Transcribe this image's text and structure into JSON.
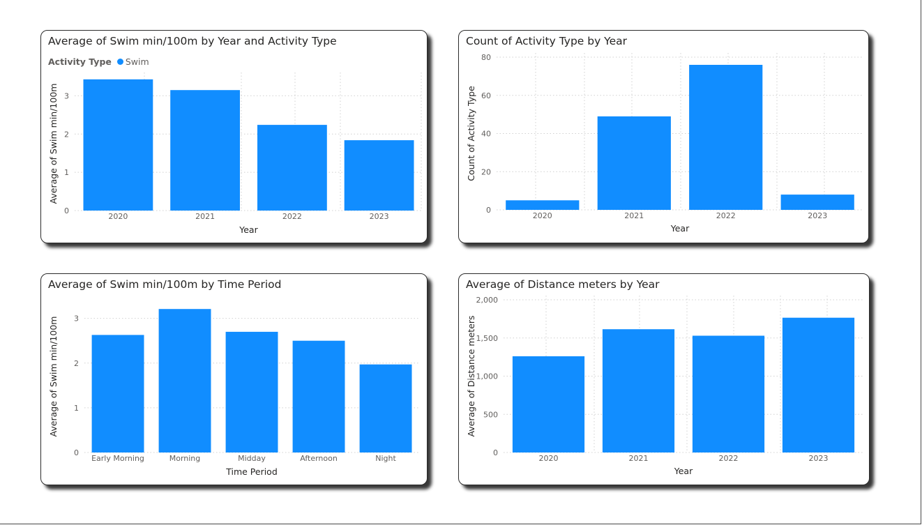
{
  "colors": {
    "bar": "#118dff",
    "grid": "#d0d0d0",
    "text": "#605e5c",
    "title": "#252423"
  },
  "chart_data": [
    {
      "id": "c1",
      "type": "bar",
      "title": "Average of Swim min/100m by Year and Activity Type",
      "legend": {
        "title": "Activity Type",
        "items": [
          "Swim"
        ],
        "position": "top-left"
      },
      "xlabel": "Year",
      "ylabel": "Average of Swim min/100m",
      "categories": [
        "2020",
        "2021",
        "2022",
        "2023"
      ],
      "series": [
        {
          "name": "Swim",
          "values": [
            3.43,
            3.15,
            2.24,
            1.84
          ]
        }
      ],
      "ylim": [
        0,
        3.5
      ],
      "yticks": [
        0,
        1,
        2,
        3
      ],
      "ytick_labels": [
        "0",
        "1",
        "2",
        "3"
      ],
      "grid": true
    },
    {
      "id": "c2",
      "type": "bar",
      "title": "Count of Activity Type by Year",
      "xlabel": "Year",
      "ylabel": "Count of Activity Type",
      "categories": [
        "2020",
        "2021",
        "2022",
        "2023"
      ],
      "series": [
        {
          "values": [
            5,
            49,
            76,
            8
          ]
        }
      ],
      "ylim": [
        0,
        80
      ],
      "yticks": [
        0,
        20,
        40,
        60,
        80
      ],
      "ytick_labels": [
        "0",
        "20",
        "40",
        "60",
        "80"
      ],
      "grid": true
    },
    {
      "id": "c3",
      "type": "bar",
      "title": "Average of Swim min/100m by Time Period",
      "xlabel": "Time Period",
      "ylabel": "Average of Swim min/100m",
      "categories": [
        "Early Morning",
        "Morning",
        "Midday",
        "Afternoon",
        "Night"
      ],
      "series": [
        {
          "values": [
            2.63,
            3.21,
            2.7,
            2.5,
            1.97
          ]
        }
      ],
      "ylim": [
        0,
        3.4
      ],
      "yticks": [
        0,
        1,
        2,
        3
      ],
      "ytick_labels": [
        "0",
        "1",
        "2",
        "3"
      ],
      "grid": true
    },
    {
      "id": "c4",
      "type": "bar",
      "title": "Average of Distance meters by Year",
      "xlabel": "Year",
      "ylabel": "Average of Distance meters",
      "categories": [
        "2020",
        "2021",
        "2022",
        "2023"
      ],
      "series": [
        {
          "values": [
            1260,
            1615,
            1530,
            1765
          ]
        }
      ],
      "ylim": [
        0,
        2000
      ],
      "yticks": [
        0,
        500,
        1000,
        1500,
        2000
      ],
      "ytick_labels": [
        "0",
        "500",
        "1,000",
        "1,500",
        "2,000"
      ],
      "grid": true
    }
  ]
}
